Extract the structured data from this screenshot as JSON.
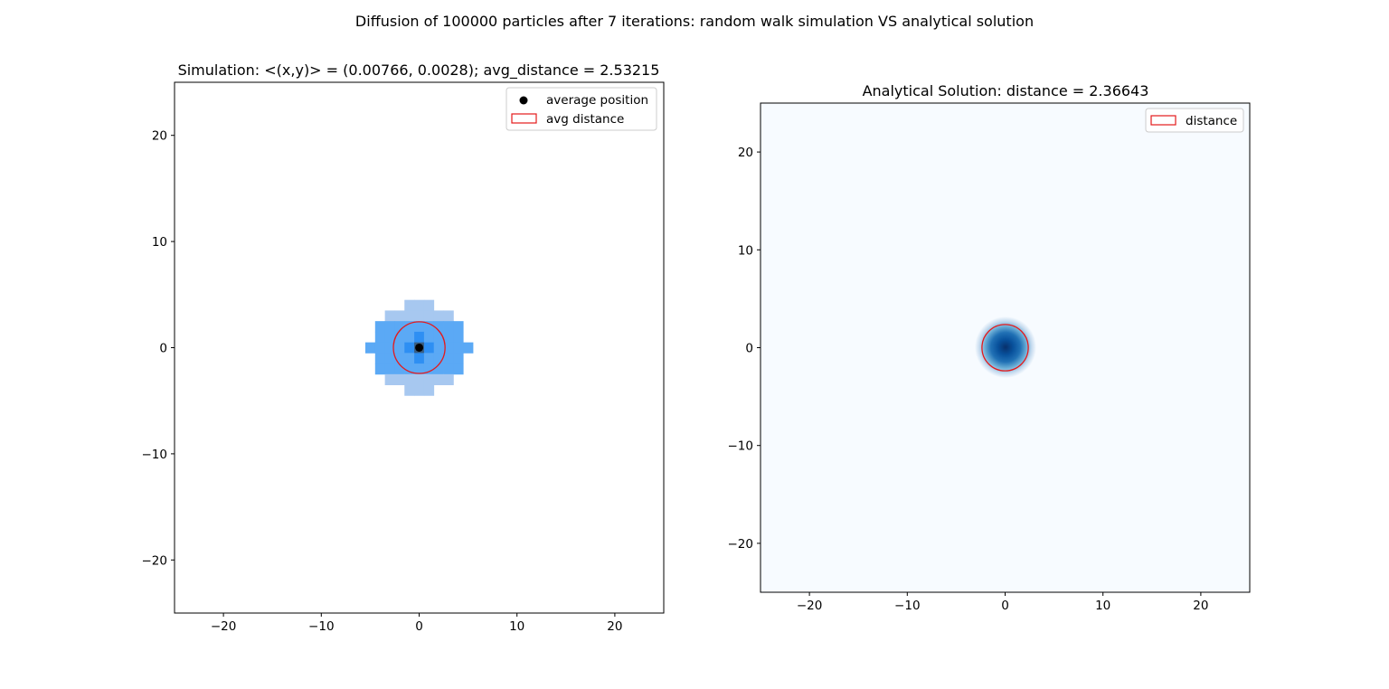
{
  "figure": {
    "suptitle": "Diffusion of 100000 particles after 7 iterations: random walk simulation VS analytical solution"
  },
  "chart_data": [
    {
      "type": "heatmap",
      "title": "Simulation: <(x,y)> = (0.00766, 0.0028); avg_distance = 2.53215",
      "xlabel": "",
      "ylabel": "",
      "xlim": [
        -25,
        25
      ],
      "ylim": [
        -25,
        25
      ],
      "xticks": [
        -20,
        -10,
        0,
        10,
        20
      ],
      "yticks": [
        -20,
        -10,
        0,
        10,
        20
      ],
      "tick_labels": [
        "−20",
        "−10",
        "0",
        "10",
        "20"
      ],
      "grid": false,
      "legend": {
        "placement": "upper right",
        "entries": [
          "average position",
          "avg distance"
        ]
      },
      "bin_width": 1,
      "cell_hex": {
        "light": "#a7c8f0",
        "mid": "#5ba9f5",
        "dark": "#2e8ff3",
        "darkest": "#3a5d80"
      },
      "row_spans": [
        {
          "y": 4,
          "x_from": -1,
          "x_to": 1,
          "level": "light"
        },
        {
          "y": 3,
          "x_from": -3,
          "x_to": 3,
          "level": "light"
        },
        {
          "y": 2,
          "x_from": -4,
          "x_to": 4,
          "level": "mid"
        },
        {
          "y": 1,
          "x_from": -4,
          "x_to": 4,
          "level": "mid"
        },
        {
          "y": 0,
          "x_from": -5,
          "x_to": 5,
          "level": "mid"
        },
        {
          "y": -1,
          "x_from": -4,
          "x_to": 4,
          "level": "mid"
        },
        {
          "y": -2,
          "x_from": -4,
          "x_to": 4,
          "level": "mid"
        },
        {
          "y": -3,
          "x_from": -3,
          "x_to": 3,
          "level": "light"
        },
        {
          "y": -4,
          "x_from": -1,
          "x_to": 1,
          "level": "light"
        }
      ],
      "average_position": [
        0.00766,
        0.0028
      ],
      "avg_distance": 2.53215,
      "marker_color": "#000000",
      "circle_color": "#e41a1c"
    },
    {
      "type": "heatmap",
      "title": "Analytical Solution: distance = 2.36643",
      "xlabel": "",
      "ylabel": "",
      "xlim": [
        -25,
        25
      ],
      "ylim": [
        -25,
        25
      ],
      "xticks": [
        -20,
        -10,
        0,
        10,
        20
      ],
      "yticks": [
        -20,
        -10,
        0,
        10,
        20
      ],
      "tick_labels": [
        "−20",
        "−10",
        "0",
        "10",
        "20"
      ],
      "grid": false,
      "legend": {
        "placement": "upper right",
        "entries": [
          "distance"
        ]
      },
      "colormap": "Blues",
      "background_color": "#f7fbff",
      "center": [
        0,
        0
      ],
      "distance": 2.36643,
      "circle_color": "#e41a1c"
    }
  ]
}
